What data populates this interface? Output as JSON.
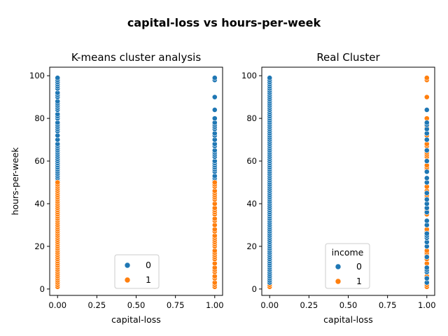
{
  "figure": {
    "title": "capital-loss vs hours-per-week"
  },
  "colors": {
    "cluster_0": "#1f77b4",
    "cluster_1": "#ff7f0e"
  },
  "chart_data": [
    {
      "type": "scatter",
      "title": "K-means cluster analysis",
      "xlabel": "capital-loss",
      "ylabel": "hours-per-week",
      "xlim": [
        -0.05,
        1.05
      ],
      "ylim": [
        -3,
        104
      ],
      "xticks": [
        0.0,
        0.25,
        0.5,
        0.75,
        1.0
      ],
      "xtick_labels": [
        "0.00",
        "0.25",
        "0.50",
        "0.75",
        "1.00"
      ],
      "yticks": [
        0,
        20,
        40,
        60,
        80,
        100
      ],
      "ytick_labels": [
        "0",
        "20",
        "40",
        "60",
        "80",
        "100"
      ],
      "legend": {
        "title": "",
        "placement": "lower center",
        "entries": [
          "0",
          "1"
        ]
      },
      "series": [
        {
          "name": "0",
          "x": 0,
          "y": [
            51,
            52,
            53,
            54,
            55,
            56,
            57,
            58,
            59,
            60,
            61,
            62,
            63,
            64,
            65,
            66,
            67,
            68,
            70,
            72,
            74,
            75,
            76,
            77,
            78,
            80,
            81,
            82,
            84,
            85,
            86,
            87,
            88,
            90,
            91,
            92,
            94,
            95,
            96,
            97,
            98,
            99
          ]
        },
        {
          "name": "1",
          "x": 0,
          "y": [
            1,
            2,
            3,
            4,
            5,
            6,
            7,
            8,
            9,
            10,
            11,
            12,
            13,
            14,
            15,
            16,
            17,
            18,
            19,
            20,
            21,
            22,
            23,
            24,
            25,
            26,
            27,
            28,
            29,
            30,
            31,
            32,
            33,
            34,
            35,
            36,
            37,
            38,
            39,
            40,
            41,
            42,
            43,
            44,
            45,
            46,
            47,
            48,
            49,
            50
          ]
        },
        {
          "name": "0",
          "x": 1,
          "y": [
            51,
            52,
            53,
            55,
            56,
            57,
            58,
            59,
            60,
            62,
            63,
            64,
            65,
            67,
            68,
            70,
            72,
            73,
            75,
            76,
            77,
            78,
            80,
            84,
            90,
            98,
            99
          ]
        },
        {
          "name": "1",
          "x": 1,
          "y": [
            1,
            2,
            3,
            5,
            6,
            8,
            9,
            10,
            12,
            14,
            15,
            16,
            17,
            18,
            20,
            21,
            22,
            23,
            24,
            25,
            27,
            28,
            30,
            32,
            33,
            35,
            36,
            37,
            38,
            40,
            42,
            43,
            44,
            45,
            46,
            48,
            49,
            50
          ]
        }
      ]
    },
    {
      "type": "scatter",
      "title": "Real Cluster",
      "xlabel": "capital-loss",
      "ylabel": "",
      "xlim": [
        -0.05,
        1.05
      ],
      "ylim": [
        -3,
        104
      ],
      "xticks": [
        0.0,
        0.25,
        0.5,
        0.75,
        1.0
      ],
      "xtick_labels": [
        "0.00",
        "0.25",
        "0.50",
        "0.75",
        "1.00"
      ],
      "yticks": [
        0,
        20,
        40,
        60,
        80,
        100
      ],
      "ytick_labels": [
        "0",
        "20",
        "40",
        "60",
        "80",
        "100"
      ],
      "legend": {
        "title": "income",
        "placement": "lower center",
        "entries": [
          "0",
          "1"
        ]
      },
      "series": [
        {
          "name": "1",
          "x": 0,
          "y": [
            1,
            2,
            3,
            5,
            8,
            12,
            15,
            18,
            20,
            25,
            30,
            33,
            35,
            40,
            44,
            45,
            48,
            50,
            52,
            55,
            56,
            58,
            60,
            62,
            65,
            66,
            68,
            70,
            72,
            75,
            78,
            80,
            84,
            85,
            88,
            90,
            92,
            95,
            96,
            98,
            99
          ]
        },
        {
          "name": "0",
          "x": 0,
          "y": [
            3,
            4,
            5,
            6,
            7,
            8,
            9,
            10,
            11,
            12,
            13,
            14,
            15,
            16,
            17,
            18,
            19,
            20,
            21,
            22,
            23,
            24,
            25,
            26,
            27,
            28,
            29,
            30,
            31,
            32,
            33,
            34,
            35,
            36,
            37,
            38,
            39,
            40,
            41,
            42,
            43,
            44,
            45,
            46,
            47,
            48,
            49,
            50,
            51,
            52,
            53,
            54,
            55,
            56,
            57,
            58,
            59,
            60,
            61,
            62,
            63,
            64,
            65,
            66,
            67,
            68,
            69,
            70,
            71,
            72,
            73,
            74,
            75,
            76,
            77,
            78,
            79,
            80,
            81,
            82,
            83,
            84,
            85,
            86,
            87,
            88,
            89,
            90,
            91,
            92,
            93,
            94,
            95,
            96,
            97,
            98,
            99
          ]
        },
        {
          "name": "1",
          "x": 1,
          "y": [
            1,
            2,
            3,
            5,
            6,
            8,
            10,
            12,
            14,
            15,
            16,
            17,
            18,
            20,
            22,
            24,
            25,
            27,
            28,
            30,
            32,
            35,
            36,
            37,
            38,
            40,
            42,
            43,
            44,
            45,
            46,
            48,
            50,
            52,
            55,
            56,
            57,
            58,
            60,
            62,
            63,
            64,
            65,
            67,
            68,
            70,
            72,
            75,
            76,
            80,
            90,
            98,
            99
          ]
        },
        {
          "name": "0",
          "x": 1,
          "y": [
            3,
            5,
            8,
            9,
            10,
            15,
            20,
            22,
            24,
            25,
            26,
            30,
            32,
            36,
            38,
            40,
            42,
            45,
            50,
            52,
            55,
            60,
            65,
            70,
            73,
            75,
            77,
            78,
            84
          ]
        }
      ]
    }
  ]
}
